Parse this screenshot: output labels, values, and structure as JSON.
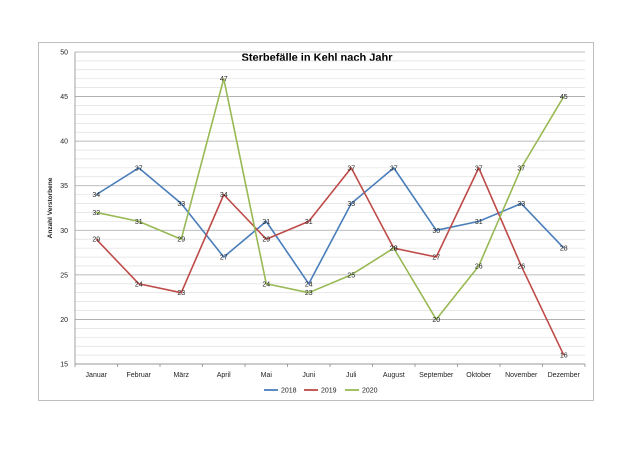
{
  "chart_data": {
    "type": "line",
    "title": "Sterbefälle in Kehl nach Jahr",
    "xlabel": "",
    "ylabel": "Anzahl Verstorbene",
    "ylim": [
      15,
      50
    ],
    "yticks": [
      15,
      20,
      25,
      30,
      35,
      40,
      45,
      50
    ],
    "grid": true,
    "legend": "bottom",
    "categories": [
      "Januar",
      "Februar",
      "März",
      "April",
      "Mai",
      "Juni",
      "Juli",
      "August",
      "September",
      "Oktober",
      "November",
      "Dezember"
    ],
    "series": [
      {
        "name": "2018",
        "color": "#4a7ebb",
        "values": [
          34,
          37,
          33,
          27,
          31,
          24,
          33,
          37,
          30,
          31,
          33,
          28
        ]
      },
      {
        "name": "2019",
        "color": "#be4b48",
        "values": [
          29,
          24,
          23,
          34,
          29,
          31,
          37,
          28,
          27,
          37,
          26,
          16
        ]
      },
      {
        "name": "2020",
        "color": "#98b954",
        "values": [
          32,
          31,
          29,
          47,
          24,
          23,
          25,
          28,
          20,
          26,
          37,
          45
        ]
      }
    ]
  }
}
